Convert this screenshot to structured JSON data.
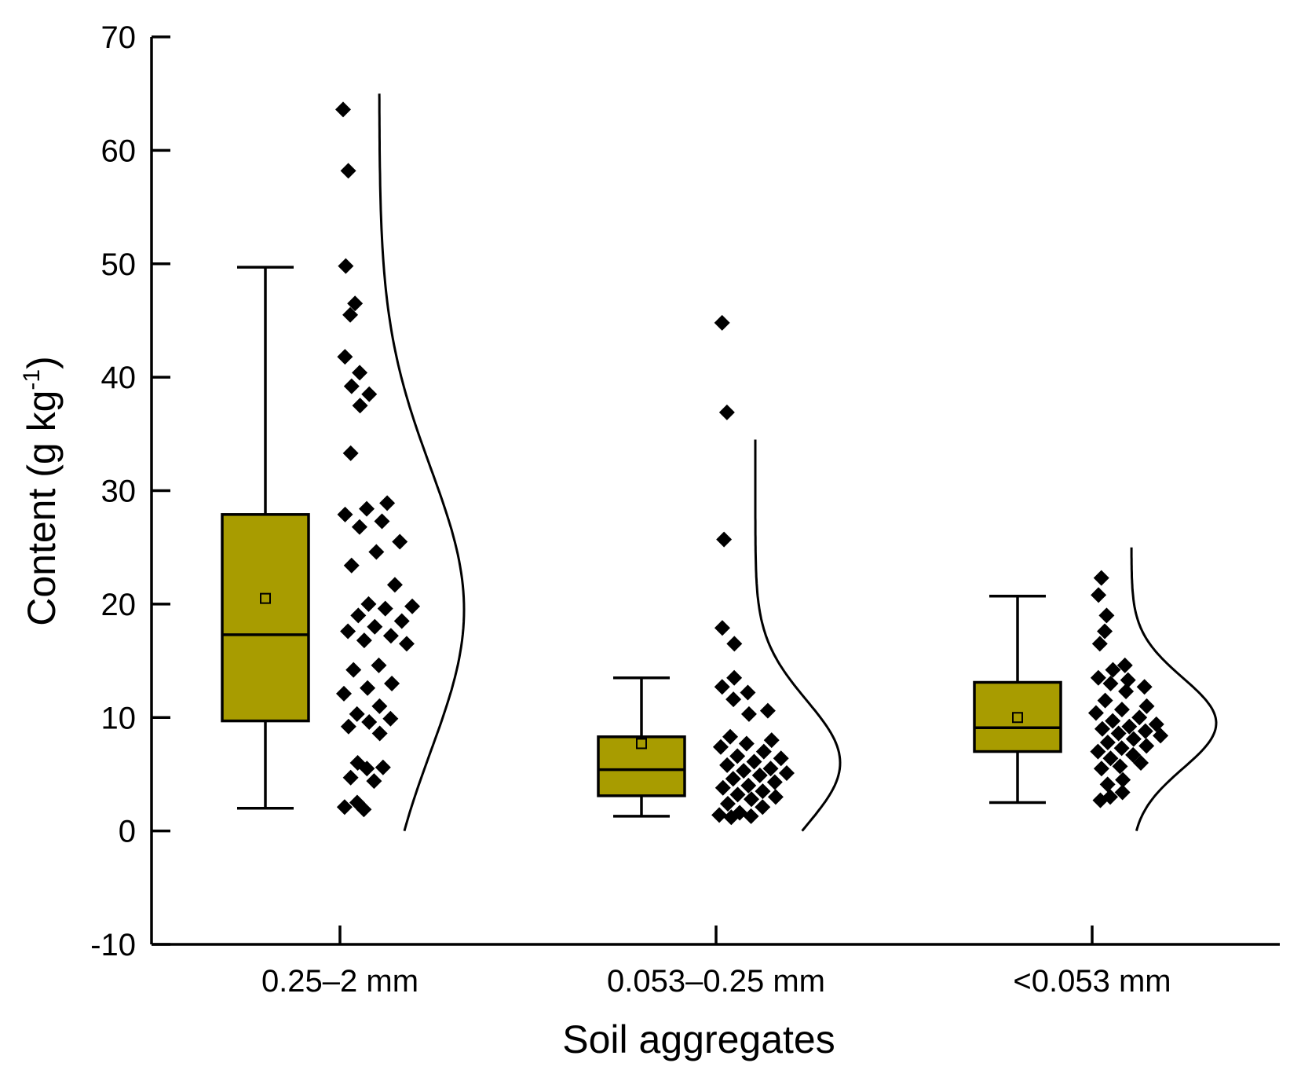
{
  "chart_data": {
    "type": "box",
    "xlabel": "Soil aggregates",
    "ylabel_main": "Content (g kg",
    "ylabel_sup": "-1",
    "ylabel_end": ")",
    "ylim": [
      -10,
      70
    ],
    "yticks": [
      -10,
      0,
      10,
      20,
      30,
      40,
      50,
      60,
      70
    ],
    "box_color": "#a89c00",
    "groups": [
      {
        "label": "0.25–2 mm",
        "whisker_low": 2.0,
        "q1": 9.7,
        "median": 17.3,
        "q3": 27.9,
        "whisker_high": 49.7,
        "mean": 20.5,
        "curve": {
          "mu": 19.5,
          "sigma": 12.5,
          "y_min": 0,
          "y_max": 65
        },
        "points": [
          63.6,
          58.2,
          49.8,
          46.5,
          45.5,
          41.8,
          40.4,
          39.2,
          38.5,
          37.5,
          33.3,
          28.9,
          28.4,
          27.9,
          27.3,
          26.8,
          25.5,
          24.6,
          23.4,
          21.7,
          20.0,
          19.8,
          19.6,
          19.0,
          18.5,
          18.0,
          17.6,
          17.2,
          16.8,
          16.5,
          14.6,
          14.2,
          13.0,
          12.6,
          12.1,
          11.0,
          10.3,
          9.9,
          9.6,
          9.2,
          8.6,
          6.0,
          5.6,
          5.5,
          4.7,
          4.4,
          2.5,
          2.1,
          1.9
        ]
      },
      {
        "label": "0.053–0.25 mm",
        "whisker_low": 1.3,
        "q1": 3.1,
        "median": 5.4,
        "q3": 8.3,
        "whisker_high": 13.5,
        "mean": 7.7,
        "curve": {
          "mu": 6.0,
          "sigma": 5.5,
          "y_min": 0,
          "y_max": 34.5
        },
        "points": [
          44.8,
          36.9,
          25.7,
          17.9,
          16.5,
          13.5,
          12.7,
          12.2,
          11.6,
          10.6,
          10.3,
          8.3,
          8.0,
          7.7,
          7.4,
          7.0,
          6.6,
          6.4,
          6.1,
          5.8,
          5.5,
          5.3,
          5.1,
          4.9,
          4.6,
          4.3,
          4.0,
          3.8,
          3.5,
          3.2,
          3.0,
          2.8,
          2.4,
          2.1,
          1.6,
          1.4,
          1.3,
          1.2
        ]
      },
      {
        "label": "<0.053 mm",
        "whisker_low": 2.5,
        "q1": 7.0,
        "median": 9.1,
        "q3": 13.1,
        "whisker_high": 20.7,
        "mean": 10.0,
        "curve": {
          "mu": 9.5,
          "sigma": 4.0,
          "y_min": 0,
          "y_max": 25
        },
        "points": [
          22.3,
          20.8,
          19.0,
          17.6,
          16.5,
          14.6,
          14.2,
          13.5,
          13.3,
          13.0,
          12.7,
          12.3,
          11.5,
          11.0,
          10.7,
          10.4,
          10.0,
          9.7,
          9.4,
          9.2,
          9.0,
          8.8,
          8.6,
          8.4,
          8.1,
          7.8,
          7.5,
          7.3,
          7.0,
          6.7,
          6.4,
          6.0,
          5.7,
          5.5,
          4.5,
          4.1,
          3.4,
          3.0,
          2.7
        ]
      }
    ]
  }
}
